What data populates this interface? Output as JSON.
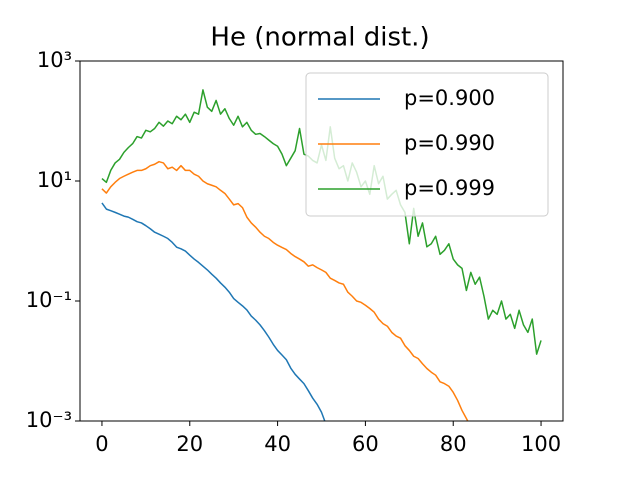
{
  "chart_data": {
    "type": "line",
    "title": "He (normal dist.)",
    "x": [
      0,
      1,
      2,
      3,
      4,
      5,
      6,
      7,
      8,
      9,
      10,
      11,
      12,
      13,
      14,
      15,
      16,
      17,
      18,
      19,
      20,
      21,
      22,
      23,
      24,
      25,
      26,
      27,
      28,
      29,
      30,
      31,
      32,
      33,
      34,
      35,
      36,
      37,
      38,
      39,
      40,
      41,
      42,
      43,
      44,
      45,
      46,
      47,
      48,
      49,
      50,
      51,
      52,
      53,
      54,
      55,
      56,
      57,
      58,
      59,
      60,
      61,
      62,
      63,
      64,
      65,
      66,
      67,
      68,
      69,
      70,
      71,
      72,
      73,
      74,
      75,
      76,
      77,
      78,
      79,
      80,
      81,
      82,
      83,
      84,
      85,
      86,
      87,
      88,
      89,
      90,
      91,
      92,
      93,
      94,
      95,
      96,
      97,
      98,
      99,
      100
    ],
    "series": [
      {
        "name": "p=0.900",
        "color": "#1f77b4",
        "values": [
          4.3,
          3.4,
          3.2,
          3.0,
          2.8,
          2.6,
          2.5,
          2.3,
          2.1,
          2.0,
          1.8,
          1.6,
          1.4,
          1.3,
          1.2,
          1.1,
          0.95,
          0.79,
          0.74,
          0.68,
          0.58,
          0.5,
          0.44,
          0.38,
          0.33,
          0.28,
          0.24,
          0.2,
          0.17,
          0.14,
          0.11,
          0.095,
          0.083,
          0.071,
          0.056,
          0.048,
          0.04,
          0.032,
          0.025,
          0.019,
          0.015,
          0.0126,
          0.0105,
          0.0076,
          0.006,
          0.005,
          0.0042,
          0.0032,
          0.0024,
          0.0019,
          0.0014,
          0.00089,
          null,
          null,
          null,
          null,
          null,
          null,
          null,
          null,
          null,
          null,
          null,
          null,
          null,
          null,
          null,
          null,
          null,
          null,
          null,
          null,
          null,
          null,
          null,
          null,
          null,
          null,
          null,
          null,
          null,
          null,
          null,
          null,
          null,
          null,
          null,
          null,
          null,
          null,
          null,
          null,
          null,
          null,
          null,
          null,
          null,
          null,
          null,
          null,
          null
        ]
      },
      {
        "name": "p=0.990",
        "color": "#ff7f0e",
        "values": [
          7.4,
          6.3,
          8.0,
          9.5,
          11,
          12,
          13,
          14,
          15,
          15,
          16,
          18,
          19,
          21,
          20,
          16,
          17,
          15,
          18,
          15,
          15,
          13,
          12,
          10,
          9.0,
          8.5,
          8.0,
          7.0,
          6.2,
          5.0,
          4.0,
          4.2,
          3.6,
          2.5,
          2.0,
          1.7,
          1.4,
          1.2,
          1.1,
          0.95,
          0.85,
          0.78,
          0.72,
          0.62,
          0.55,
          0.5,
          0.45,
          0.38,
          0.4,
          0.36,
          0.33,
          0.3,
          0.24,
          0.22,
          0.2,
          0.19,
          0.14,
          0.12,
          0.1,
          0.095,
          0.085,
          0.075,
          0.065,
          0.05,
          0.042,
          0.038,
          0.03,
          0.026,
          0.024,
          0.018,
          0.015,
          0.012,
          0.011,
          0.009,
          0.0075,
          0.0065,
          0.0058,
          0.0045,
          0.0042,
          0.0038,
          0.003,
          0.0022,
          0.0015,
          0.0011,
          0.0008,
          null,
          null,
          null,
          null,
          null,
          null,
          null,
          null,
          null,
          null,
          null,
          null,
          null,
          null,
          null,
          null
        ]
      },
      {
        "name": "p=0.999",
        "color": "#2ca02c",
        "values": [
          11,
          9.5,
          15,
          20,
          23,
          30,
          36,
          42,
          55,
          52,
          70,
          66,
          75,
          95,
          82,
          100,
          90,
          120,
          105,
          130,
          95,
          140,
          130,
          330,
          170,
          145,
          220,
          130,
          160,
          110,
          85,
          120,
          80,
          95,
          70,
          60,
          62,
          55,
          48,
          42,
          38,
          28,
          18,
          24,
          32,
          75,
          28,
          26,
          22,
          20,
          40,
          22,
          80,
          24,
          16,
          18,
          10,
          20,
          14,
          8,
          10,
          6,
          18,
          9,
          12,
          5,
          6,
          7,
          4,
          3,
          0.9,
          3.5,
          1.2,
          2.0,
          0.8,
          0.9,
          1.2,
          0.6,
          0.7,
          0.9,
          0.5,
          0.4,
          0.35,
          0.15,
          0.3,
          0.19,
          0.25,
          0.12,
          0.05,
          0.07,
          0.06,
          0.1,
          0.05,
          0.06,
          0.035,
          0.07,
          0.04,
          0.03,
          0.05,
          0.013,
          0.022
        ]
      }
    ],
    "xlim": [
      -5,
      105
    ],
    "xticks": [
      0,
      20,
      40,
      60,
      80,
      100
    ],
    "ylim": [
      0.001,
      1000
    ],
    "yscale": "log",
    "yticks": [
      {
        "value": 0.001,
        "label": "10⁻³"
      },
      {
        "value": 0.1,
        "label": "10⁻¹"
      },
      {
        "value": 10,
        "label": "10¹"
      },
      {
        "value": 1000,
        "label": "10³"
      }
    ],
    "legend": "upper right"
  }
}
